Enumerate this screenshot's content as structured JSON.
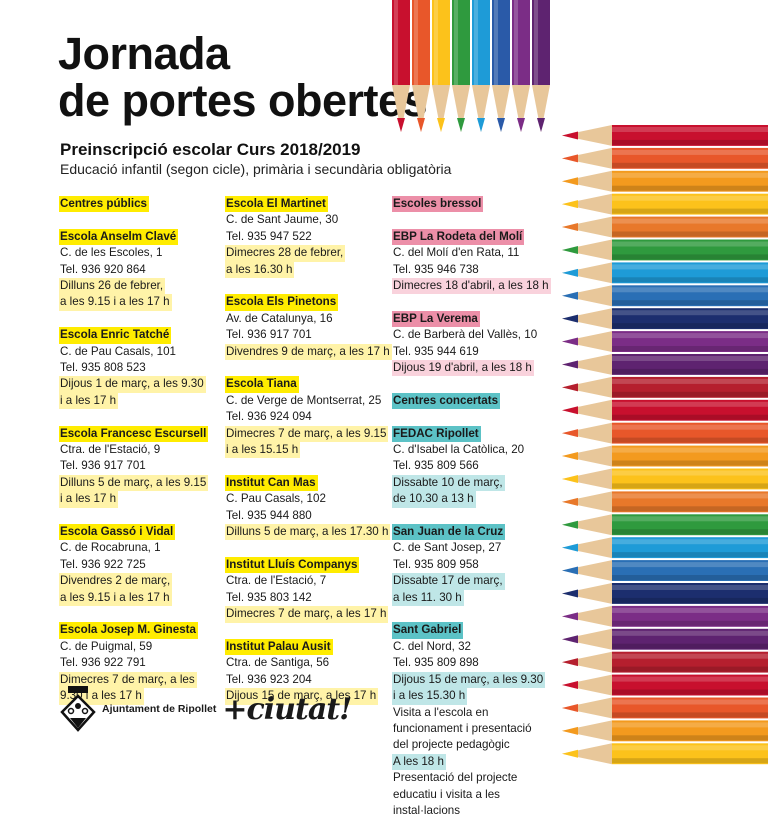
{
  "header": {
    "title_line1": "Jornada",
    "title_line2": "de portes obertes",
    "subtitle": "Preinscripció escolar Curs 2018/2019",
    "subsubtitle": "Educació infantil (segon cicle), primària i secundària obligatòria"
  },
  "columns": [
    {
      "theme": "yellow",
      "blocks": [
        {
          "section": "Centres públics"
        },
        {
          "name": "Escola Anselm Clavé",
          "address": "C. de les Escoles, 1",
          "tel": "Tel. 936 920 864",
          "time": [
            "Dilluns 26 de febrer,",
            "a les 9.15 i a les 17 h"
          ]
        },
        {
          "name": "Escola Enric Tatché",
          "address": "C. de Pau Casals, 101",
          "tel": "Tel. 935 808 523",
          "time": [
            "Dijous 1 de març, a les 9.30",
            "i a les 17 h"
          ]
        },
        {
          "name": "Escola Francesc Escursell",
          "address": "Ctra. de l'Estació, 9",
          "tel": "Tel. 936 917 701",
          "time": [
            "Dilluns 5 de març, a les 9.15",
            "i a les 17 h"
          ]
        },
        {
          "name": "Escola Gassó i Vidal",
          "address": "C. de Rocabruna, 1",
          "tel": "Tel. 936 922 725",
          "time": [
            "Divendres 2 de març,",
            "a les 9.15 i a les 17 h"
          ]
        },
        {
          "name": "Escola Josep M. Ginesta",
          "address": "C. de Puigmal, 59",
          "tel": "Tel. 936 922 791",
          "time": [
            "Dimecres 7 de març, a les",
            "9.30 i a les 17 h"
          ]
        }
      ]
    },
    {
      "theme": "yellow",
      "blocks": [
        {
          "name": "Escola El Martinet",
          "address": "C. de Sant Jaume, 30",
          "tel": "Tel. 935 947 522",
          "time": [
            "Dimecres 28 de febrer,",
            "a les 16.30 h"
          ]
        },
        {
          "name": "Escola Els Pinetons",
          "address": "Av. de Catalunya, 16",
          "tel": "Tel. 936 917 701",
          "time": [
            "Divendres 9 de març, a les 17 h"
          ]
        },
        {
          "name": "Escola Tiana",
          "address": "C. de Verge de Montserrat, 25",
          "tel": "Tel. 936 924 094",
          "time": [
            "Dimecres 7 de març, a les 9.15",
            "i a les 15.15 h"
          ]
        },
        {
          "name": "Institut Can Mas",
          "address": "C. Pau Casals, 102",
          "tel": "Tel. 935 944 880",
          "time": [
            "Dilluns 5 de març, a les 17.30 h"
          ]
        },
        {
          "name": "Institut Lluís Companys",
          "address": "Ctra. de l'Estació, 7",
          "tel": "Tel. 935 803 142",
          "time": [
            "Dimecres 7 de març, a les 17 h"
          ]
        },
        {
          "name": "Institut Palau Ausit",
          "address": "Ctra. de Santiga, 56",
          "tel": "Tel. 936 923 204",
          "time": [
            "Dijous 15 de març, a les 17 h"
          ]
        }
      ]
    },
    {
      "theme": "mixed",
      "blocks": [
        {
          "section": "Escoles bressol",
          "theme": "pink"
        },
        {
          "name": "EBP La Rodeta del Molí",
          "address": "C. del Molí d'en Rata, 11",
          "tel": "Tel. 935 946 738",
          "time": [
            "Dimecres 18 d'abril, a les 18 h"
          ],
          "theme": "pink"
        },
        {
          "name": "EBP La Verema",
          "address": "C. de Barberà del Vallès, 10",
          "tel": "Tel. 935 944 619",
          "time": [
            "Dijous 19 d'abril, a les 18 h"
          ],
          "theme": "pink"
        },
        {
          "section": "Centres concertats",
          "theme": "teal"
        },
        {
          "name": "FEDAC Ripollet",
          "address": "C. d'Isabel la Catòlica, 20",
          "tel": "Tel. 935 809 566",
          "time": [
            "Dissabte 10 de març,",
            "de 10.30 a 13 h"
          ],
          "theme": "teal"
        },
        {
          "name": "San Juan de la Cruz",
          "address": "C. de Sant Josep, 27",
          "tel": "Tel. 935 809 958",
          "time": [
            "Dissabte 17 de març,",
            "a les 11. 30 h"
          ],
          "theme": "teal"
        },
        {
          "name": "Sant Gabriel",
          "address": "C. del Nord, 32",
          "tel": "Tel. 935 809 898",
          "time": [
            "Dijous 15 de març, a les 9.30",
            "i a les 15.30 h"
          ],
          "note": [
            "Visita a l'escola en",
            "funcionament i presentació",
            "del projecte pedagògic"
          ],
          "time2": [
            "A les 18 h"
          ],
          "note2": [
            "Presentació del projecte",
            "educatiu i visita a les",
            "instal·lacions"
          ],
          "theme": "teal"
        }
      ]
    }
  ],
  "footer": {
    "townhall": "Ajuntament de Ripollet",
    "slogan": "+ciutat!"
  },
  "colors": {
    "highlight_yellow": "#ffec00",
    "highlight_pink": "#ec8fa8",
    "highlight_teal": "#5cc2c6",
    "pencils_right": [
      "#c8102e",
      "#e8572a",
      "#f39a1e",
      "#fcc21b",
      "#e8782a",
      "#2f9a3e",
      "#1e9bd7",
      "#2a6fb5",
      "#1c2e6e",
      "#7b2d86",
      "#5e2370",
      "#b51f2e"
    ],
    "pencils_top": [
      "#c8102e",
      "#e8572a",
      "#fcc21b",
      "#2f9a3e",
      "#1e9bd7",
      "#2a5aa8",
      "#7b2d86",
      "#5e2370"
    ]
  }
}
